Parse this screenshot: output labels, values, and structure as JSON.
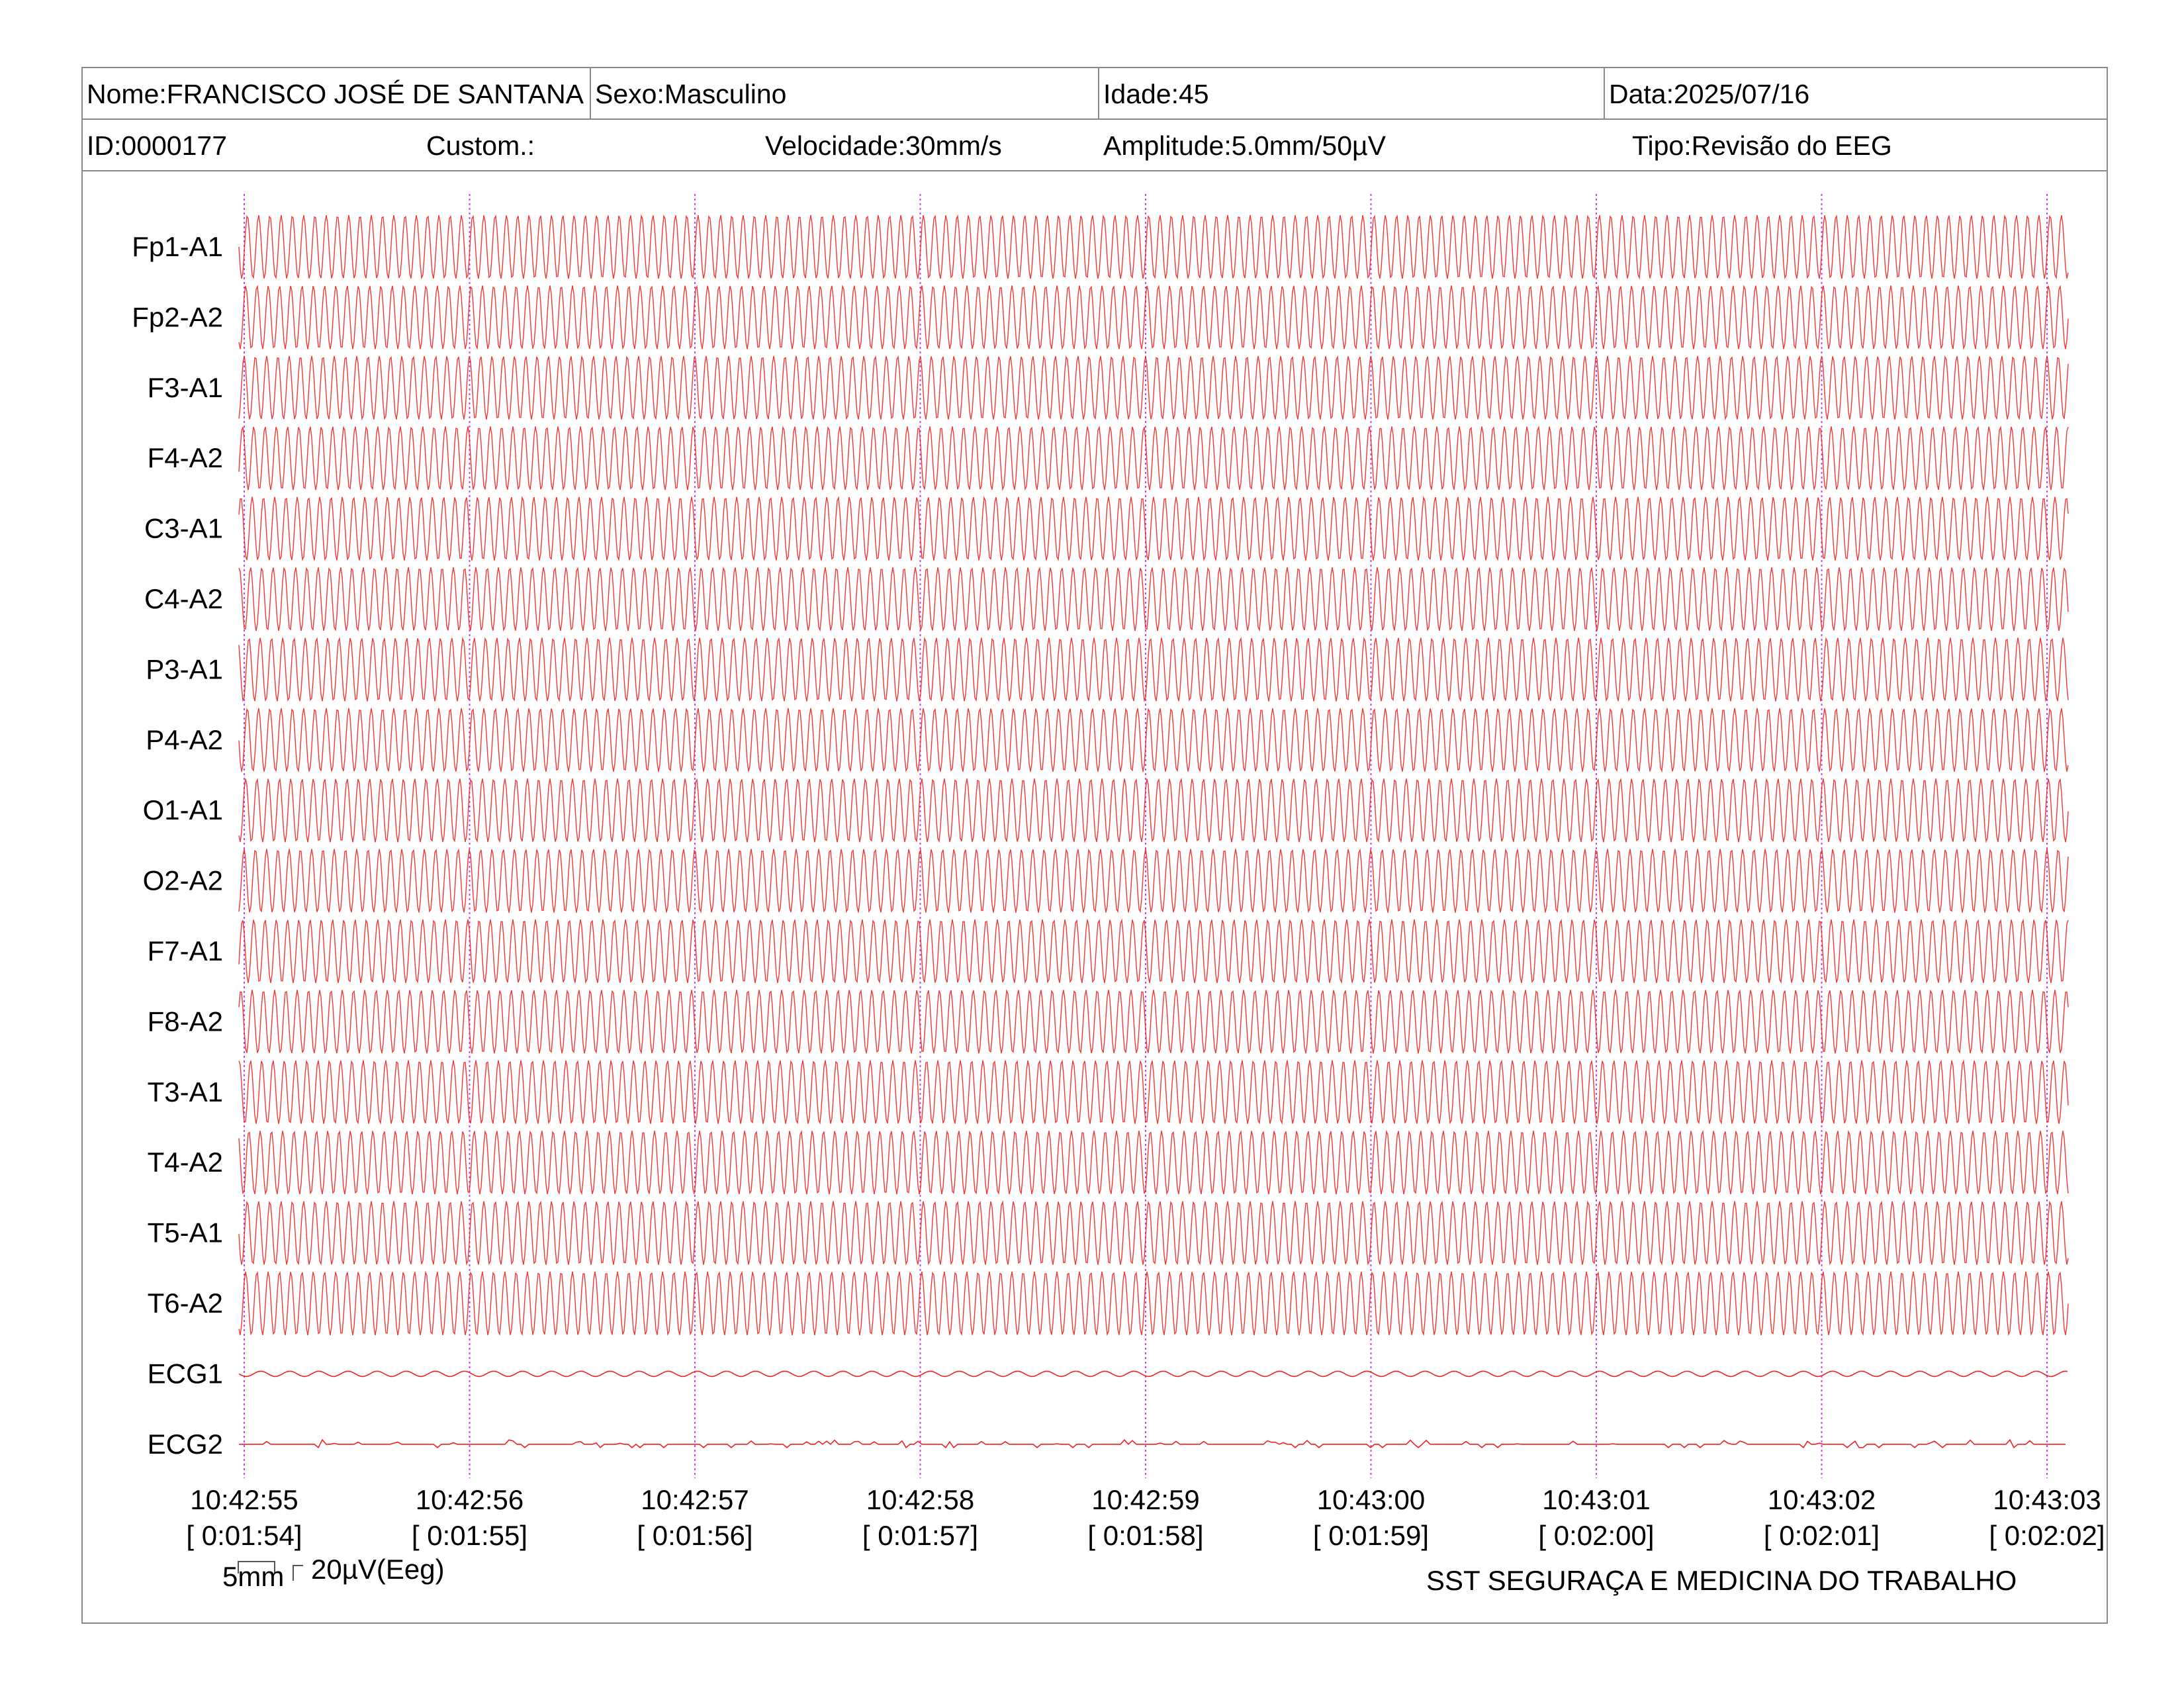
{
  "header": {
    "name": "Nome:FRANCISCO JOSÉ DE SANTANA",
    "sex": "Sexo:Masculino",
    "age": "Idade:45",
    "date": "Data:2025/07/16",
    "id": "ID:0000177",
    "custom": "Custom.:",
    "speed": "Velocidade:30mm/s",
    "amplitude": "Amplitude:5.0mm/50µV",
    "type": "Tipo:Revisão do EEG"
  },
  "chart_data": {
    "type": "line",
    "title": "",
    "xlabel": "",
    "ylabel": "",
    "channels": [
      "Fp1-A1",
      "Fp2-A2",
      "F3-A1",
      "F4-A2",
      "C3-A1",
      "C4-A2",
      "P3-A1",
      "P4-A2",
      "O1-A1",
      "O2-A2",
      "F7-A1",
      "F8-A2",
      "T3-A1",
      "T4-A2",
      "T5-A1",
      "T6-A2",
      "ECG1",
      "ECG2"
    ],
    "time_ticks": [
      {
        "clock": "10:42:55",
        "elapsed": "[ 0:01:54]"
      },
      {
        "clock": "10:42:56",
        "elapsed": "[ 0:01:55]"
      },
      {
        "clock": "10:42:57",
        "elapsed": "[ 0:01:56]"
      },
      {
        "clock": "10:42:58",
        "elapsed": "[ 0:01:57]"
      },
      {
        "clock": "10:42:59",
        "elapsed": "[ 0:01:58]"
      },
      {
        "clock": "10:43:00",
        "elapsed": "[ 0:01:59]"
      },
      {
        "clock": "10:43:01",
        "elapsed": "[ 0:02:00]"
      },
      {
        "clock": "10:43:02",
        "elapsed": "[ 0:02:01]"
      },
      {
        "clock": "10:43:03",
        "elapsed": "[ 0:02:02]"
      }
    ],
    "eeg_cycles_per_second": 20,
    "grid": "vertical dotted lines at each second",
    "trace_color": "#ee2222",
    "grid_color": "#cc44dd"
  },
  "footer": {
    "scale_time": "5mm",
    "scale_amp": "20µV(Eeg)",
    "company": "SST SEGURAÇA E MEDICINA DO TRABALHO"
  }
}
